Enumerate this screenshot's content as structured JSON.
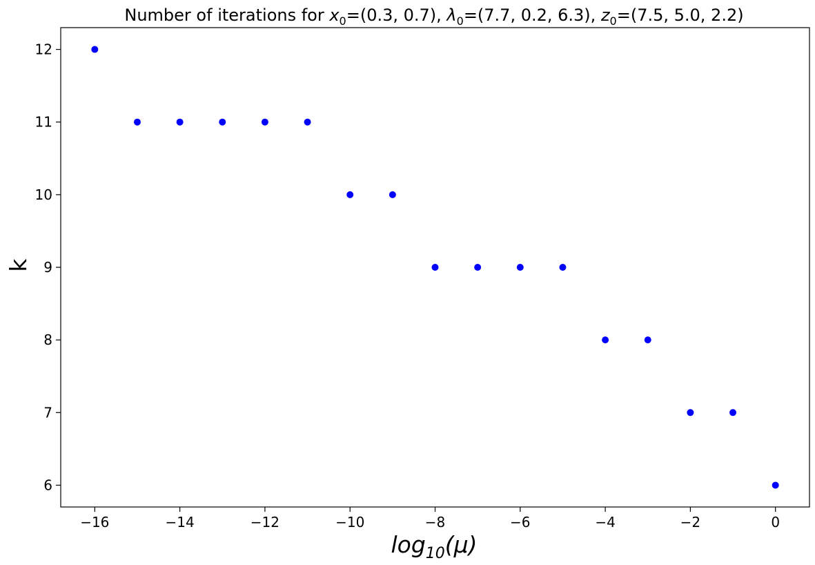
{
  "chart_data": {
    "type": "scatter",
    "title": {
      "prefix": "Number of iterations for ",
      "x_sym": "x",
      "lambda_sym": "λ",
      "z_sym": "z",
      "sub": "0",
      "x_val": "=(0.3, 0.7), ",
      "lambda_val": "=(7.7, 0.2, 6.3), ",
      "z_val": "=(7.5, 5.0, 2.2)"
    },
    "xlabel": {
      "base": "log",
      "sub": "10",
      "arg": "(μ)"
    },
    "ylabel": "k",
    "xlim": [
      -16.8,
      0.8
    ],
    "ylim": [
      5.7,
      12.3
    ],
    "xticks": [
      -16,
      -14,
      -12,
      -10,
      -8,
      -6,
      -4,
      -2,
      0
    ],
    "xtick_labels": [
      "−16",
      "−14",
      "−12",
      "−10",
      "−8",
      "−6",
      "−4",
      "−2",
      "0"
    ],
    "yticks": [
      6,
      7,
      8,
      9,
      10,
      11,
      12
    ],
    "ytick_labels": [
      "6",
      "7",
      "8",
      "9",
      "10",
      "11",
      "12"
    ],
    "marker_color": "#0000ff",
    "x": [
      -16,
      -15,
      -14,
      -13,
      -12,
      -11,
      -10,
      -9,
      -8,
      -7,
      -6,
      -5,
      -4,
      -3,
      -2,
      -1,
      0
    ],
    "y": [
      12,
      11,
      11,
      11,
      11,
      11,
      10,
      10,
      9,
      9,
      9,
      9,
      8,
      8,
      7,
      7,
      6
    ]
  }
}
